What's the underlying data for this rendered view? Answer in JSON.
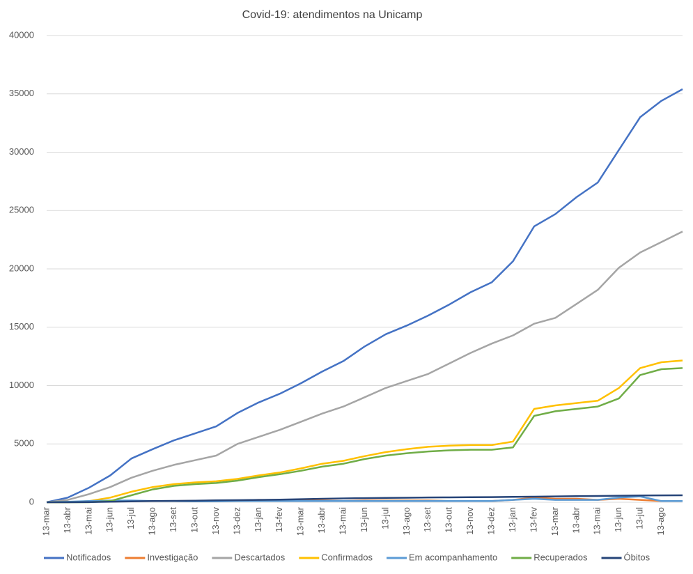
{
  "chart_data": {
    "type": "line",
    "title": "Covid-19: atendimentos  na Unicamp",
    "categories": [
      "13-mar",
      "13-abr",
      "13-mai",
      "13-jun",
      "13-jul",
      "13-ago",
      "13-set",
      "13-out",
      "13-nov",
      "13-dez",
      "13-jan",
      "13-fev",
      "13-mar",
      "13-abr",
      "13-mai",
      "13-jun",
      "13-jul",
      "13-ago",
      "13-set",
      "13-out",
      "13-nov",
      "13-dez",
      "13-jan",
      "13-fev",
      "13-mar",
      "13-abr",
      "13-mai",
      "13-jun",
      "13-jul",
      "13-ago",
      null
    ],
    "series": [
      {
        "name": "Notificados",
        "color": "#4472c4",
        "values": [
          0,
          400,
          1250,
          2300,
          3750,
          4550,
          5300,
          5900,
          6500,
          7650,
          8550,
          9300,
          10200,
          11200,
          12100,
          13350,
          14400,
          15150,
          16000,
          16950,
          18000,
          18850,
          20650,
          23650,
          24700,
          26150,
          27400,
          30200,
          33000,
          34400,
          35400
        ]
      },
      {
        "name": "Investigação",
        "color": "#ed7d31",
        "values": [
          0,
          50,
          50,
          50,
          100,
          100,
          100,
          120,
          150,
          150,
          200,
          150,
          150,
          150,
          100,
          150,
          150,
          150,
          150,
          100,
          100,
          100,
          200,
          400,
          300,
          300,
          200,
          300,
          200,
          100,
          100
        ]
      },
      {
        "name": "Descartados",
        "color": "#a5a5a5",
        "values": [
          0,
          200,
          700,
          1300,
          2100,
          2700,
          3200,
          3600,
          4000,
          5000,
          5600,
          6200,
          6900,
          7600,
          8200,
          9000,
          9800,
          10400,
          11000,
          11900,
          12800,
          13600,
          14300,
          15300,
          15800,
          17000,
          18200,
          20100,
          21400,
          22300,
          23200
        ]
      },
      {
        "name": "Confirmados",
        "color": "#ffc000",
        "values": [
          0,
          0,
          100,
          400,
          900,
          1300,
          1550,
          1700,
          1800,
          2000,
          2300,
          2550,
          2900,
          3300,
          3550,
          3950,
          4300,
          4550,
          4750,
          4850,
          4900,
          4900,
          5200,
          8000,
          8300,
          8500,
          8700,
          9800,
          11500,
          12000,
          12150
        ]
      },
      {
        "name": "Em acompanhamento",
        "color": "#5b9bd5",
        "values": [
          0,
          50,
          100,
          150,
          150,
          100,
          100,
          80,
          80,
          100,
          100,
          100,
          100,
          100,
          100,
          100,
          100,
          100,
          100,
          100,
          100,
          100,
          200,
          300,
          200,
          200,
          200,
          400,
          500,
          100,
          100
        ]
      },
      {
        "name": "Recuperados",
        "color": "#70ad47",
        "values": [
          0,
          0,
          0,
          100,
          600,
          1100,
          1400,
          1550,
          1650,
          1850,
          2150,
          2400,
          2700,
          3050,
          3300,
          3700,
          4000,
          4200,
          4350,
          4450,
          4500,
          4500,
          4700,
          7400,
          7800,
          8000,
          8200,
          8900,
          10900,
          11400,
          11500
        ]
      },
      {
        "name": "Óbitos",
        "color": "#264478",
        "values": [
          0,
          0,
          20,
          50,
          80,
          100,
          120,
          140,
          160,
          180,
          200,
          220,
          260,
          300,
          330,
          350,
          370,
          390,
          410,
          420,
          430,
          440,
          460,
          480,
          500,
          520,
          540,
          560,
          580,
          590,
          600
        ]
      }
    ],
    "ylim": [
      0,
      40000
    ],
    "yticks": [
      0,
      5000,
      10000,
      15000,
      20000,
      25000,
      30000,
      35000,
      40000
    ],
    "grid": true,
    "legend": "bottom"
  }
}
